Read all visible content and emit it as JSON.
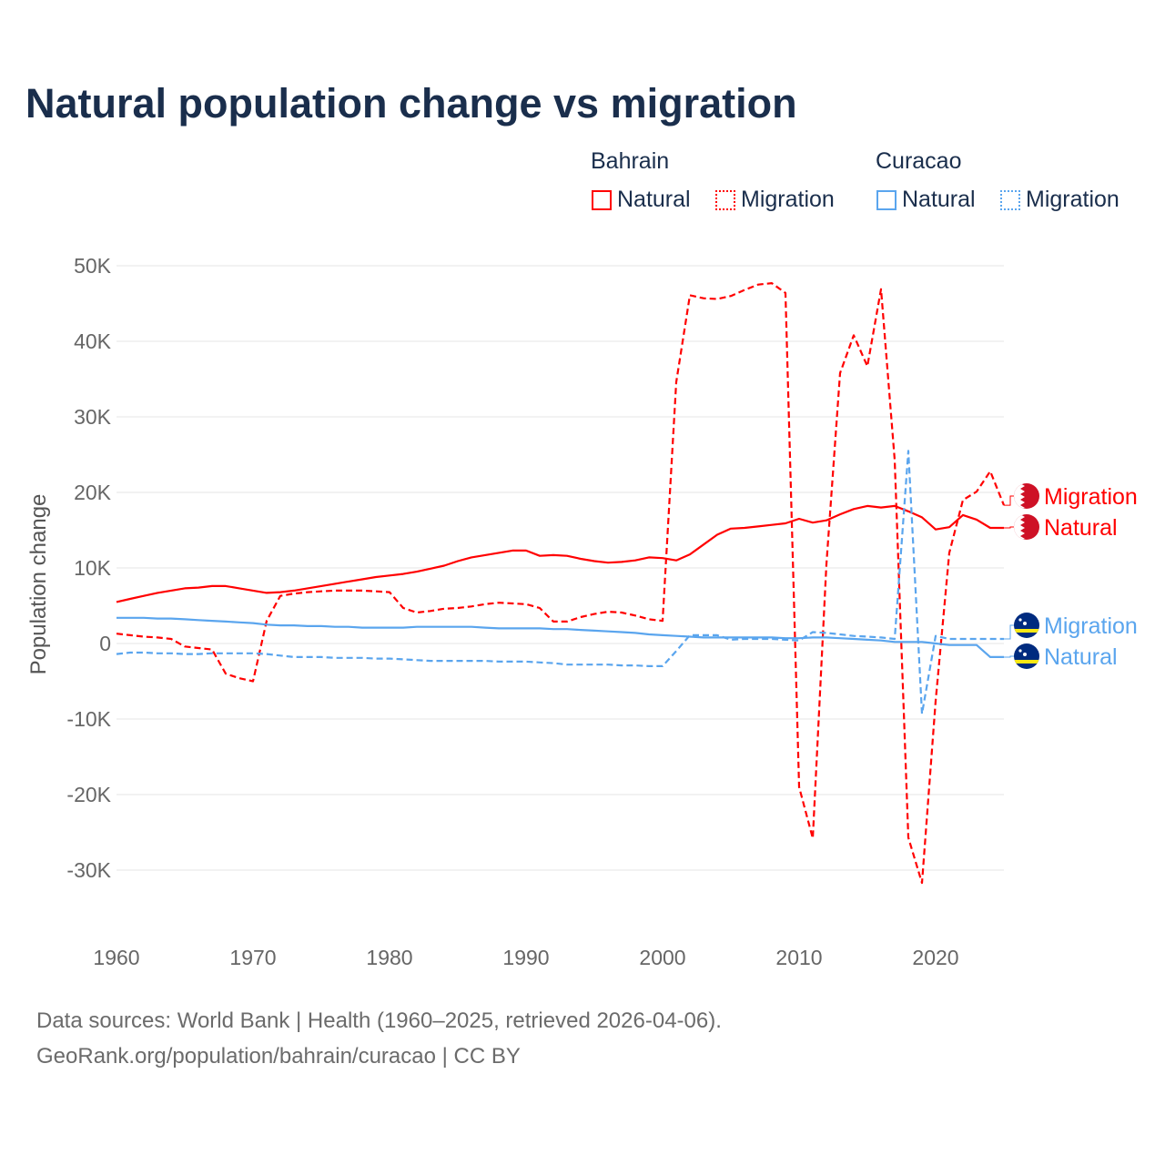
{
  "title": "Natural population change vs migration",
  "legend": {
    "groups": [
      {
        "name": "Bahrain",
        "color": "#ff0000",
        "items": [
          "Natural",
          "Migration"
        ]
      },
      {
        "name": "Curacao",
        "color": "#5aa5ee",
        "items": [
          "Natural",
          "Migration"
        ]
      }
    ]
  },
  "footer": {
    "line1": "Data sources: World Bank | Health (1960–2025, retrieved 2026-04-06).",
    "line2": "GeoRank.org/population/bahrain/curacao | CC BY"
  },
  "chart_data": {
    "type": "line",
    "title": "Natural population change vs migration",
    "xlabel": "",
    "ylabel": "Population change",
    "values_unit": "thousands",
    "xlim": [
      1960,
      2025
    ],
    "ylim": [
      -30,
      50
    ],
    "x_ticks": [
      "1960",
      "1970",
      "1980",
      "1990",
      "2000",
      "2010",
      "2020"
    ],
    "y_ticks": [
      {
        "v": 50,
        "label": "50K"
      },
      {
        "v": 40,
        "label": "40K"
      },
      {
        "v": 30,
        "label": "30K"
      },
      {
        "v": 20,
        "label": "20K"
      },
      {
        "v": 10,
        "label": "10K"
      },
      {
        "v": 0,
        "label": "0"
      },
      {
        "v": -10,
        "label": "-10K"
      },
      {
        "v": -20,
        "label": "-20K"
      },
      {
        "v": -30,
        "label": "-30K"
      }
    ],
    "grid": true,
    "legend_position": "top-right",
    "x_start": 1960,
    "series": [
      {
        "name": "Bahrain Natural",
        "end_label": "Natural",
        "color": "#ff0000",
        "dash": false,
        "values": [
          5.5,
          5.9,
          6.3,
          6.7,
          7.0,
          7.3,
          7.4,
          7.6,
          7.6,
          7.3,
          7.0,
          6.7,
          6.8,
          7.0,
          7.3,
          7.6,
          7.9,
          8.2,
          8.5,
          8.8,
          9.0,
          9.2,
          9.5,
          9.9,
          10.3,
          10.9,
          11.4,
          11.7,
          12.0,
          12.3,
          12.3,
          11.6,
          11.7,
          11.6,
          11.2,
          10.9,
          10.7,
          10.8,
          11.0,
          11.4,
          11.3,
          11.0,
          11.8,
          13.1,
          14.4,
          15.2,
          15.3,
          15.5,
          15.7,
          15.9,
          16.5,
          16.0,
          16.3,
          17.1,
          17.8,
          18.2,
          18.0,
          18.2,
          17.5,
          16.7,
          15.1,
          15.4,
          17.0,
          16.4,
          15.3,
          15.3
        ]
      },
      {
        "name": "Bahrain Migration",
        "end_label": "Migration",
        "color": "#ff0000",
        "dash": true,
        "values": [
          1.3,
          1.1,
          0.9,
          0.8,
          0.6,
          -0.4,
          -0.6,
          -0.8,
          -4.0,
          -4.6,
          -5.0,
          3.0,
          6.3,
          6.6,
          6.8,
          6.9,
          7.0,
          7.0,
          7.0,
          6.9,
          6.8,
          4.7,
          4.1,
          4.3,
          4.6,
          4.7,
          4.9,
          5.2,
          5.4,
          5.3,
          5.2,
          4.7,
          2.9,
          2.9,
          3.5,
          3.9,
          4.2,
          4.1,
          3.7,
          3.2,
          3.0,
          34.6,
          46.1,
          45.7,
          45.6,
          46.0,
          46.8,
          47.5,
          47.7,
          46.4,
          -19.0,
          -25.8,
          10.5,
          35.8,
          40.8,
          36.7,
          46.9,
          24.3,
          -25.7,
          -31.7,
          -7.6,
          12.0,
          19.0,
          20.1,
          22.8,
          18.3
        ]
      },
      {
        "name": "Curacao Natural",
        "end_label": "Natural",
        "color": "#5aa5ee",
        "dash": false,
        "values": [
          3.4,
          3.4,
          3.4,
          3.3,
          3.3,
          3.2,
          3.1,
          3.0,
          2.9,
          2.8,
          2.7,
          2.5,
          2.4,
          2.4,
          2.3,
          2.3,
          2.2,
          2.2,
          2.1,
          2.1,
          2.1,
          2.1,
          2.2,
          2.2,
          2.2,
          2.2,
          2.2,
          2.1,
          2.0,
          2.0,
          2.0,
          2.0,
          1.9,
          1.9,
          1.8,
          1.7,
          1.6,
          1.5,
          1.4,
          1.2,
          1.1,
          1.0,
          0.9,
          0.8,
          0.8,
          0.8,
          0.8,
          0.8,
          0.8,
          0.7,
          0.7,
          0.8,
          0.8,
          0.7,
          0.6,
          0.5,
          0.4,
          0.2,
          0.2,
          0.2,
          0.0,
          -0.2,
          -0.2,
          -0.2,
          -1.8,
          -1.8
        ]
      },
      {
        "name": "Curacao Migration",
        "end_label": "Migration",
        "color": "#5aa5ee",
        "dash": true,
        "values": [
          -1.4,
          -1.2,
          -1.2,
          -1.3,
          -1.3,
          -1.4,
          -1.4,
          -1.3,
          -1.3,
          -1.3,
          -1.3,
          -1.4,
          -1.6,
          -1.8,
          -1.8,
          -1.8,
          -1.9,
          -1.9,
          -1.9,
          -2.0,
          -2.0,
          -2.1,
          -2.2,
          -2.3,
          -2.3,
          -2.3,
          -2.3,
          -2.3,
          -2.4,
          -2.4,
          -2.4,
          -2.5,
          -2.6,
          -2.8,
          -2.8,
          -2.8,
          -2.8,
          -2.9,
          -2.9,
          -3.0,
          -3.0,
          -1.0,
          1.1,
          1.1,
          1.1,
          0.5,
          0.6,
          0.6,
          0.6,
          0.5,
          0.4,
          1.5,
          1.4,
          1.2,
          1.0,
          0.9,
          0.8,
          0.6,
          25.5,
          -9.3,
          1.0,
          0.6,
          0.6,
          0.6,
          0.6,
          0.6
        ]
      }
    ]
  }
}
